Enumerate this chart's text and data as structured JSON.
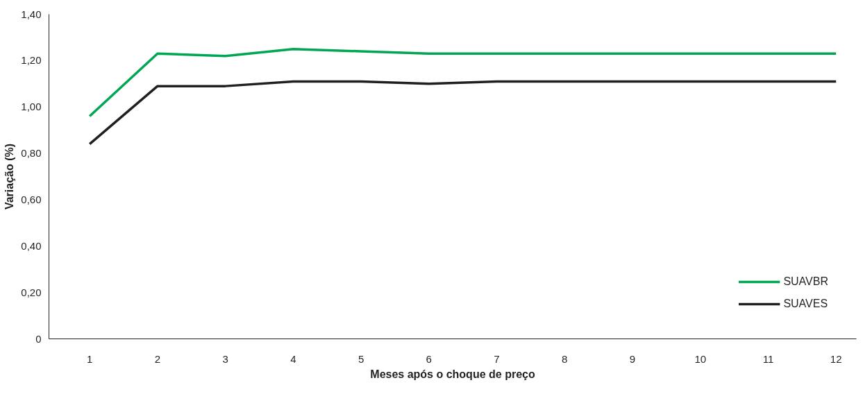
{
  "chart_data": {
    "type": "line",
    "xlabel": "Meses após o choque de preço",
    "ylabel": "Variação (%)",
    "x": [
      1,
      2,
      3,
      4,
      5,
      6,
      7,
      8,
      9,
      10,
      11,
      12
    ],
    "xlim": [
      0.4,
      12.3
    ],
    "xticks": [
      1,
      2,
      3,
      4,
      5,
      6,
      7,
      8,
      9,
      10,
      11,
      12
    ],
    "series": [
      {
        "name": "SUAVBR",
        "color": "#00a651",
        "values": [
          0.96,
          1.23,
          1.22,
          1.25,
          1.24,
          1.23,
          1.23,
          1.23,
          1.23,
          1.23,
          1.23,
          1.23
        ]
      },
      {
        "name": "SUAVES",
        "color": "#231f20",
        "values": [
          0.84,
          1.09,
          1.09,
          1.11,
          1.11,
          1.1,
          1.11,
          1.11,
          1.11,
          1.11,
          1.11,
          1.11
        ]
      }
    ],
    "ylim": [
      0,
      1.4
    ],
    "yticks": [
      0,
      {
        "value": 0.2,
        "label": "0,20"
      },
      {
        "value": 0.4,
        "label": "0,40"
      },
      {
        "value": 0.6,
        "label": "0,60"
      },
      {
        "value": 0.8,
        "label": "0,80"
      },
      {
        "value": 1.0,
        "label": "1,00"
      },
      {
        "value": 1.2,
        "label": "1,20"
      },
      {
        "value": 1.4,
        "label": "1,40"
      }
    ],
    "grid": false,
    "legend": "bottom right",
    "marker": "none",
    "line_style": "solid"
  }
}
